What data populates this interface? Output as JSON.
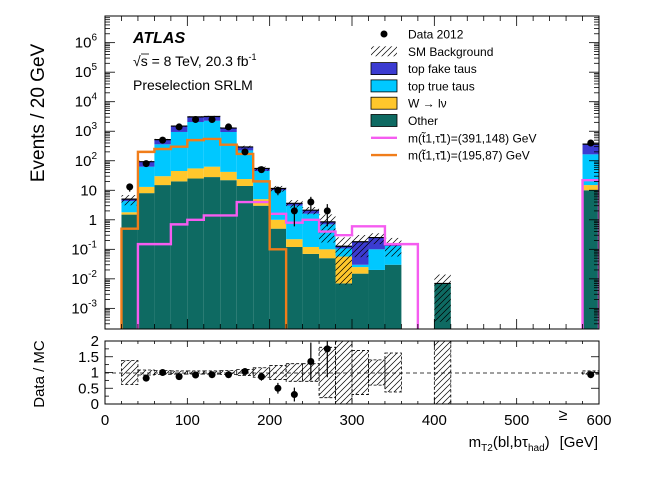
{
  "chart_data": {
    "type": "bar",
    "style": "stacked-histogram-log",
    "experiment": "ATLAS",
    "energy_text": "s = 8 TeV, 20.3 fb",
    "energy_sqrt": "√",
    "energy_sup": "-1",
    "region": "Preselection SRLM",
    "ylabel": "Events / 20 GeV",
    "ratio_ylabel": "Data / MC",
    "xlabel_main": "m",
    "xlabel_sub": "T2",
    "xlabel_arg": "(bl,bτ",
    "xlabel_arg_sub": "had",
    "xlabel_close": ")",
    "xlabel_unit": "[GeV]",
    "xlim": [
      0,
      600
    ],
    "ylim": [
      0.0002,
      8000000
    ],
    "ratio_ylim": [
      0,
      2
    ],
    "x_ticks": [
      "0",
      "100",
      "200",
      "300",
      "400",
      "500",
      "600"
    ],
    "x_tick_values": [
      0,
      100,
      200,
      300,
      400,
      500,
      600
    ],
    "overflow_symbol": "≥",
    "y_ticks": [
      {
        "base": "10",
        "exp": "-3",
        "value": 0.001
      },
      {
        "base": "10",
        "exp": "-2",
        "value": 0.01
      },
      {
        "base": "10",
        "exp": "-1",
        "value": 0.1
      },
      {
        "base": "1",
        "exp": "",
        "value": 1
      },
      {
        "base": "10",
        "exp": "",
        "value": 10
      },
      {
        "base": "10",
        "exp": "2",
        "value": 100
      },
      {
        "base": "10",
        "exp": "3",
        "value": 1000
      },
      {
        "base": "10",
        "exp": "4",
        "value": 10000
      },
      {
        "base": "10",
        "exp": "5",
        "value": 100000
      },
      {
        "base": "10",
        "exp": "6",
        "value": 1000000
      }
    ],
    "ratio_ticks": [
      "0",
      "0.5",
      "1",
      "1.5",
      "2"
    ],
    "ratio_tick_values": [
      0,
      0.5,
      1,
      1.5,
      2
    ],
    "bins": [
      [
        20,
        40
      ],
      [
        40,
        60
      ],
      [
        60,
        80
      ],
      [
        80,
        100
      ],
      [
        100,
        120
      ],
      [
        120,
        140
      ],
      [
        140,
        160
      ],
      [
        160,
        180
      ],
      [
        180,
        200
      ],
      [
        200,
        220
      ],
      [
        220,
        240
      ],
      [
        240,
        260
      ],
      [
        260,
        280
      ],
      [
        280,
        300
      ],
      [
        300,
        320
      ],
      [
        320,
        340
      ],
      [
        340,
        360
      ],
      [
        360,
        380
      ],
      [
        380,
        400
      ],
      [
        400,
        420
      ],
      [
        420,
        440
      ],
      [
        580,
        600
      ]
    ],
    "series": [
      {
        "name": "Other",
        "color": "#0e6a62",
        "values": [
          1.5,
          8,
          15,
          20,
          25,
          28,
          22,
          14,
          3,
          0.5,
          0.12,
          0.07,
          0.05,
          0.007,
          0.015,
          0.02,
          0.03,
          0,
          0,
          0.007,
          0,
          10
        ]
      },
      {
        "name": "W → lν",
        "color": "#ffc72c",
        "values": [
          0.3,
          5,
          15,
          25,
          30,
          35,
          20,
          10,
          2,
          0.5,
          0.1,
          0.05,
          0.05,
          0.05,
          0.01,
          0,
          0,
          0,
          0,
          0,
          0,
          5
        ]
      },
      {
        "name": "top true taus",
        "color": "#00c8ff",
        "values": [
          2.5,
          50,
          330,
          900,
          2000,
          2200,
          900,
          200,
          40,
          9,
          2.8,
          1.5,
          0.6,
          0.05,
          0.005,
          0.08,
          0.1,
          0,
          0,
          0,
          0,
          150
        ]
      },
      {
        "name": "top fake taus",
        "color": "#3b3bd1",
        "values": [
          0.7,
          30,
          160,
          550,
          1000,
          900,
          340,
          70,
          10,
          1.5,
          0.6,
          0.5,
          0.15,
          0.02,
          0.15,
          0.15,
          0.02,
          0,
          0,
          0,
          0,
          200
        ]
      }
    ],
    "signals": [
      {
        "name": "m(t̃1,τ̃1)=(391,148) GeV",
        "color": "#f55cf0",
        "values": [
          0,
          0.15,
          0.15,
          0.7,
          1,
          1.4,
          1.4,
          4,
          4,
          1.6,
          0.8,
          1,
          0.4,
          0.3,
          0.6,
          0.6,
          0.15,
          0.15,
          0,
          0,
          0,
          22
        ]
      },
      {
        "name": "m(t̃1,τ̃1)=(195,87) GeV",
        "color": "#f07d1a",
        "values": [
          0.5,
          200,
          250,
          300,
          500,
          550,
          350,
          170,
          20,
          0.1,
          0,
          0,
          0,
          0,
          0,
          0,
          0,
          0,
          0,
          0,
          0,
          0
        ]
      }
    ],
    "data": {
      "name": "Data 2012",
      "x": [
        30,
        50,
        70,
        90,
        110,
        130,
        150,
        170,
        190,
        210,
        230,
        250,
        270,
        590
      ],
      "y": [
        13,
        80,
        500,
        1400,
        2500,
        2500,
        1400,
        200,
        50,
        10,
        2,
        4,
        2,
        400
      ],
      "yerr": [
        4,
        9,
        22,
        37,
        50,
        50,
        37,
        14,
        7,
        3.2,
        1.4,
        2,
        1.4,
        20
      ]
    },
    "ratio": {
      "x": [
        50,
        70,
        90,
        110,
        130,
        150,
        170,
        190,
        210,
        230,
        250,
        270,
        590
      ],
      "y": [
        0.82,
        1.0,
        0.87,
        0.92,
        0.93,
        0.93,
        1.03,
        0.87,
        0.5,
        0.3,
        1.35,
        1.75,
        0.93
      ],
      "yerr": [
        0.1,
        0.05,
        0.03,
        0.02,
        0.02,
        0.03,
        0.08,
        0.13,
        0.17,
        0.22,
        0.6,
        0.9,
        0.04
      ]
    },
    "uncertainty_band": {
      "label": "SM Background",
      "rel": [
        0.38,
        0.08,
        0.06,
        0.05,
        0.05,
        0.05,
        0.06,
        0.1,
        0.15,
        0.22,
        0.28,
        0.28,
        0.8,
        1.0,
        0.7,
        0.4,
        0.62,
        0,
        0,
        1.0,
        0,
        0.05
      ]
    },
    "legend": [
      {
        "label": "Data 2012",
        "kind": "marker"
      },
      {
        "label": "SM Background",
        "kind": "hatch"
      },
      {
        "label": "top fake taus",
        "kind": "fill",
        "color": "#3b3bd1"
      },
      {
        "label": "top true taus",
        "kind": "fill",
        "color": "#00c8ff"
      },
      {
        "label": "W → lν",
        "kind": "fill",
        "color": "#ffc72c"
      },
      {
        "label": "Other",
        "kind": "fill",
        "color": "#0e6a62"
      },
      {
        "label": "m(t̃1,τ̃1)=(391,148) GeV",
        "kind": "line",
        "color": "#f55cf0"
      },
      {
        "label": "m(t̃1,τ̃1)=(195,87) GeV",
        "kind": "line",
        "color": "#f07d1a"
      }
    ]
  }
}
